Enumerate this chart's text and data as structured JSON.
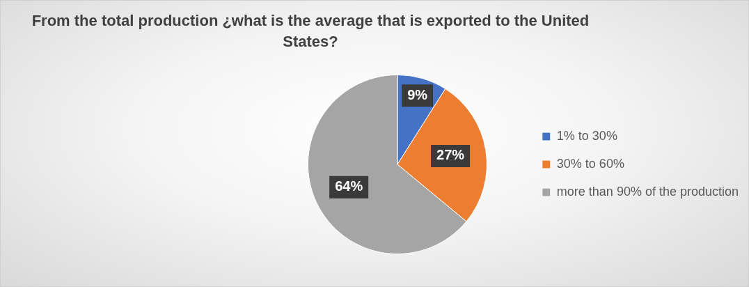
{
  "chart_data": {
    "type": "pie",
    "title": "From the total production ¿what is the average that is exported to the United States?",
    "categories": [
      "1% to 30%",
      "30% to 60%",
      "more than 90% of the production"
    ],
    "values": [
      9,
      27,
      64
    ],
    "colors": [
      "#4472c4",
      "#ed7d31",
      "#a5a5a5"
    ],
    "value_labels": [
      "9%",
      "27%",
      "64%"
    ],
    "legend": "right"
  }
}
